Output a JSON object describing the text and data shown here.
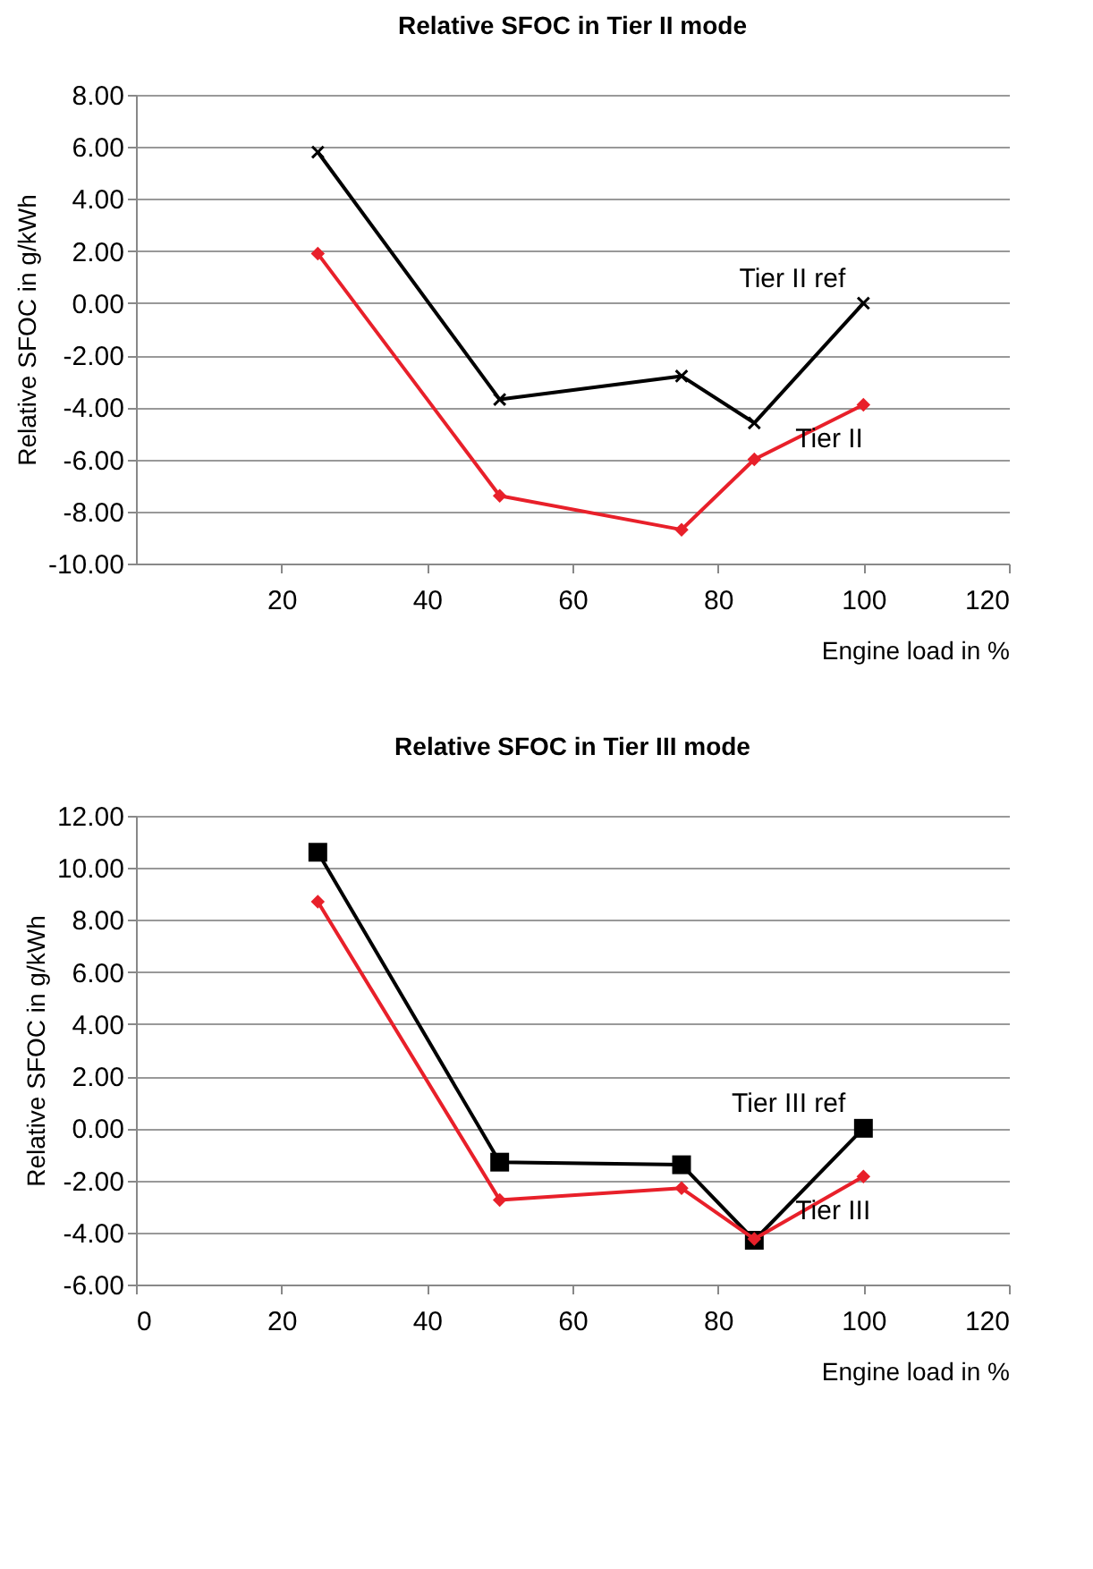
{
  "chart_data": [
    {
      "type": "line",
      "title": "Relative SFOC in Tier II mode",
      "xlabel": "Engine load in %",
      "ylabel": "Relative SFOC in g/kWh",
      "x": [
        25,
        50,
        75,
        85,
        100
      ],
      "series": [
        {
          "name": "Tier II ref",
          "color": "#000000",
          "marker": "cross",
          "values": [
            5.8,
            -3.7,
            -2.8,
            -4.6,
            0
          ]
        },
        {
          "name": "Tier II",
          "color": "#e8202a",
          "marker": "diamond",
          "values": [
            1.9,
            -7.4,
            -8.7,
            -6.0,
            -3.9
          ]
        }
      ],
      "xlim": [
        0,
        120
      ],
      "xticks": [
        20,
        40,
        60,
        80,
        100,
        120
      ],
      "ylim": [
        -10,
        8
      ],
      "yticks": [
        {
          "value": -10,
          "label": "-10.00"
        },
        {
          "value": -8,
          "label": "-8.00"
        },
        {
          "value": -6,
          "label": "-6.00"
        },
        {
          "value": -4,
          "label": "-4.00"
        },
        {
          "value": -2,
          "label": "-2.00"
        },
        {
          "value": 0,
          "label": "0.00"
        },
        {
          "value": 2,
          "label": "2.00"
        },
        {
          "value": 4,
          "label": "4.00"
        },
        {
          "value": 6,
          "label": "6.00"
        },
        {
          "value": 8,
          "label": "8.00"
        }
      ],
      "grid": "y",
      "legend": false,
      "line_style": "solid"
    },
    {
      "type": "line",
      "title": "Relative SFOC in Tier III mode",
      "xlabel": "Engine load in %",
      "ylabel": "Relative SFOC in g/kWh",
      "x": [
        25,
        50,
        75,
        85,
        100
      ],
      "series": [
        {
          "name": "Tier III ref",
          "color": "#000000",
          "marker": "square",
          "values": [
            10.6,
            -1.3,
            -1.4,
            -4.3,
            0
          ]
        },
        {
          "name": "Tier III",
          "color": "#e8202a",
          "marker": "diamond",
          "values": [
            8.7,
            -2.75,
            -2.3,
            -4.25,
            -1.85
          ]
        }
      ],
      "xlim": [
        0,
        120
      ],
      "xticks": [
        0,
        20,
        40,
        60,
        80,
        100,
        120
      ],
      "ylim": [
        -6,
        12
      ],
      "yticks": [
        {
          "value": -6,
          "label": "-6.00"
        },
        {
          "value": -4,
          "label": "-4.00"
        },
        {
          "value": -2,
          "label": "-2.00"
        },
        {
          "value": 0,
          "label": "0.00"
        },
        {
          "value": 2,
          "label": "2.00"
        },
        {
          "value": 4,
          "label": "4.00"
        },
        {
          "value": 6,
          "label": "6.00"
        },
        {
          "value": 8,
          "label": "8.00"
        },
        {
          "value": 10,
          "label": "10.00"
        },
        {
          "value": 12,
          "label": "12.00"
        }
      ],
      "grid": "y",
      "legend": false,
      "line_style": "solid"
    }
  ]
}
